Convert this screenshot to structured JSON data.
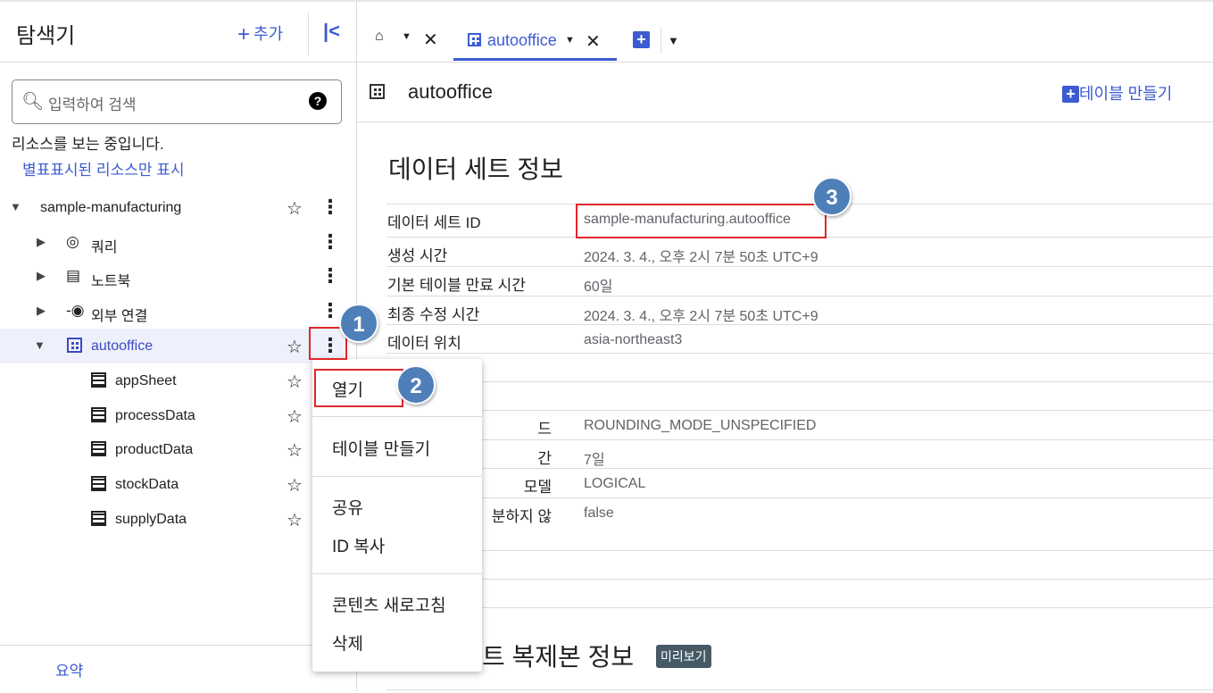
{
  "explorer": {
    "title": "탐색기",
    "add_label": "추가",
    "search_placeholder": "입력하여 검색",
    "viewing_text": "리소스를 보는 중입니다.",
    "starred_only_link": "별표표시된 리소스만 표시",
    "footer_label": "요약",
    "tree": [
      {
        "label": "sample-manufacturing",
        "type": "project"
      },
      {
        "label": "쿼리",
        "type": "queries"
      },
      {
        "label": "노트북",
        "type": "notebooks"
      },
      {
        "label": "외부 연결",
        "type": "connections"
      },
      {
        "label": "autooffice",
        "type": "dataset",
        "selected": true
      },
      {
        "label": "appSheet",
        "type": "table"
      },
      {
        "label": "processData",
        "type": "table"
      },
      {
        "label": "productData",
        "type": "table"
      },
      {
        "label": "stockData",
        "type": "table"
      },
      {
        "label": "supplyData",
        "type": "table"
      }
    ]
  },
  "tabs": [
    {
      "label": "",
      "icon": "home-icon"
    },
    {
      "label": "autooffice",
      "icon": "dataset-icon",
      "active": true
    }
  ],
  "header": {
    "title": "autooffice",
    "create_table": "테이블 만들기"
  },
  "info": {
    "title": "데이터 세트 정보",
    "rows": [
      {
        "key": "데이터 세트 ID",
        "value": "sample-manufacturing.autooffice"
      },
      {
        "key": "생성 시간",
        "value": "2024. 3. 4., 오후 2시 7분 50초 UTC+9"
      },
      {
        "key": "기본 테이블 만료 시간",
        "value": "60일"
      },
      {
        "key": "최종 수정 시간",
        "value": "2024. 3. 4., 오후 2시 7분 50초 UTC+9"
      },
      {
        "key": "데이터 위치",
        "value": "asia-northeast3"
      },
      {
        "key": "",
        "value": ""
      },
      {
        "key": "",
        "value": ""
      },
      {
        "key": "드",
        "value": "ROUNDING_MODE_UNSPECIFIED"
      },
      {
        "key": "간",
        "value": "7일"
      },
      {
        "key": "모델",
        "value": "LOGICAL"
      },
      {
        "key": "분하지 않",
        "value": "false"
      }
    ]
  },
  "replica": {
    "title": "트 복제본 정보",
    "badge": "미리보기"
  },
  "context_menu": {
    "items": [
      "열기",
      "테이블 만들기",
      "공유",
      "ID 복사",
      "콘텐츠 새로고침",
      "삭제"
    ]
  },
  "annotations": [
    "1",
    "2",
    "3"
  ],
  "colors": {
    "accent": "#3c5bd1",
    "highlight": "#e0262b",
    "annotation": "#4f7fb8"
  }
}
